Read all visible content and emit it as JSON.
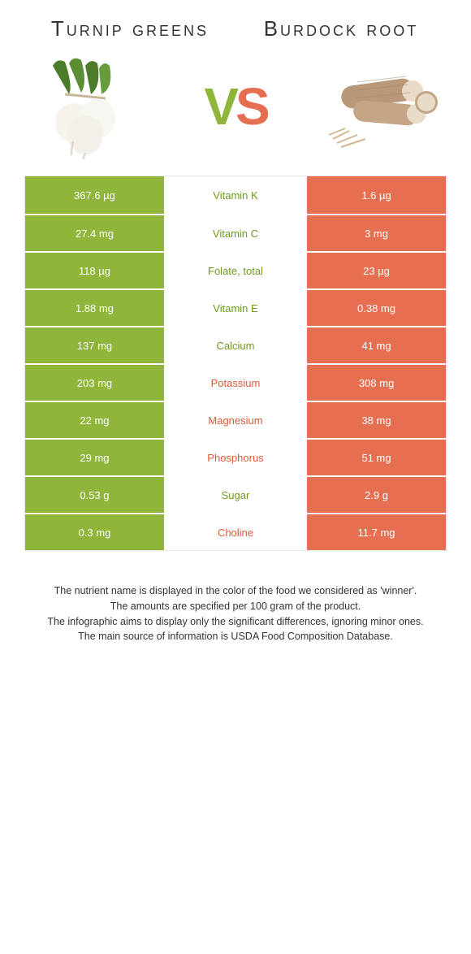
{
  "colors": {
    "left": "#8fb63b",
    "right": "#e76f51",
    "left_text": "#6d9a1f",
    "right_text": "#dc5a36",
    "background": "#ffffff",
    "border": "#e8e8e8"
  },
  "food_left": {
    "name": "Turnip greens"
  },
  "food_right": {
    "name": "Burdock root"
  },
  "vs": {
    "v": "V",
    "s": "S"
  },
  "rows": [
    {
      "left": "367.6 µg",
      "label": "Vitamin K",
      "right": "1.6 µg",
      "winner": "left"
    },
    {
      "left": "27.4 mg",
      "label": "Vitamin C",
      "right": "3 mg",
      "winner": "left"
    },
    {
      "left": "118 µg",
      "label": "Folate, total",
      "right": "23 µg",
      "winner": "left"
    },
    {
      "left": "1.88 mg",
      "label": "Vitamin E",
      "right": "0.38 mg",
      "winner": "left"
    },
    {
      "left": "137 mg",
      "label": "Calcium",
      "right": "41 mg",
      "winner": "left"
    },
    {
      "left": "203 mg",
      "label": "Potassium",
      "right": "308 mg",
      "winner": "right"
    },
    {
      "left": "22 mg",
      "label": "Magnesium",
      "right": "38 mg",
      "winner": "right"
    },
    {
      "left": "29 mg",
      "label": "Phosphorus",
      "right": "51 mg",
      "winner": "right"
    },
    {
      "left": "0.53 g",
      "label": "Sugar",
      "right": "2.9 g",
      "winner": "left"
    },
    {
      "left": "0.3 mg",
      "label": "Choline",
      "right": "11.7 mg",
      "winner": "right"
    }
  ],
  "footnotes": [
    "The nutrient name is displayed in the color of the food we considered as 'winner'.",
    "The amounts are specified per 100 gram of the product.",
    "The infographic aims to display only the significant differences, ignoring minor ones.",
    "The main source of information is USDA Food Composition Database."
  ]
}
